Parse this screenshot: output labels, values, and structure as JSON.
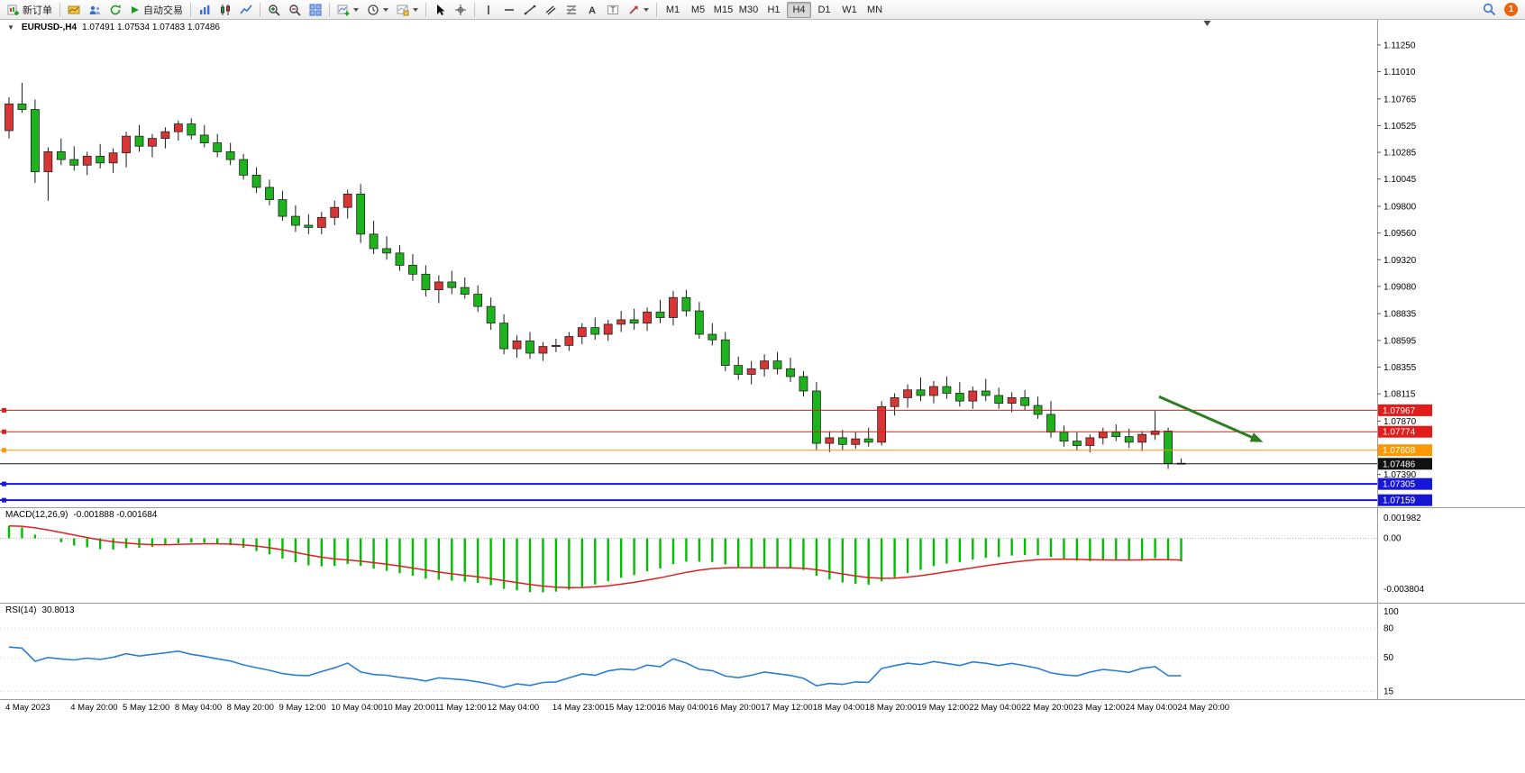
{
  "toolbar": {
    "new_order_label": "新订单",
    "autotrading_label": "自动交易",
    "timeframes": [
      "M1",
      "M5",
      "M15",
      "M30",
      "H1",
      "H4",
      "D1",
      "W1",
      "MN"
    ],
    "active_timeframe": "H4",
    "notification_count": "1"
  },
  "chart_header": {
    "symbol_period": "EURUSD-,H4",
    "ohlc": "1.07491 1.07534 1.07483 1.07486"
  },
  "macd_pane": {
    "title": "MACD(12,26,9)",
    "values": "-0.001888 -0.001684",
    "axis_labels": [
      "0.001982",
      "0.00",
      "-0.003804"
    ]
  },
  "rsi_pane": {
    "title": "RSI(14)",
    "value": "30.8013",
    "axis_labels": [
      "100",
      "80",
      "50",
      "15"
    ]
  },
  "chart_data": {
    "type": "candlestick",
    "symbol": "EURUSD-",
    "period": "H4",
    "price_ylim": [
      1.0712,
      1.1133
    ],
    "price_ticks": [
      "1.11250",
      "1.11010",
      "1.10765",
      "1.10525",
      "1.10285",
      "1.10045",
      "1.09800",
      "1.09560",
      "1.09320",
      "1.09080",
      "1.08835",
      "1.08595",
      "1.08355",
      "1.08115",
      "1.07870",
      "1.07390"
    ],
    "up_color": "#d93535",
    "down_color": "#1db31d",
    "outline_color": "#222222",
    "candles": [
      [
        1.1048,
        1.1078,
        1.1041,
        1.1072
      ],
      [
        1.1072,
        1.1091,
        1.1064,
        1.1067
      ],
      [
        1.1067,
        1.1076,
        1.1001,
        1.1011
      ],
      [
        1.1011,
        1.1033,
        1.0985,
        1.1029
      ],
      [
        1.1029,
        1.1041,
        1.1017,
        1.1022
      ],
      [
        1.1022,
        1.1034,
        1.1012,
        1.1017
      ],
      [
        1.1017,
        1.1029,
        1.1008,
        1.1025
      ],
      [
        1.1025,
        1.1036,
        1.1014,
        1.1019
      ],
      [
        1.1019,
        1.1032,
        1.101,
        1.1028
      ],
      [
        1.1028,
        1.1047,
        1.1015,
        1.1043
      ],
      [
        1.1043,
        1.1053,
        1.1029,
        1.1034
      ],
      [
        1.1034,
        1.1045,
        1.1024,
        1.1041
      ],
      [
        1.1041,
        1.1051,
        1.1032,
        1.1047
      ],
      [
        1.1047,
        1.1057,
        1.1039,
        1.1054
      ],
      [
        1.1054,
        1.1059,
        1.104,
        1.1044
      ],
      [
        1.1044,
        1.1053,
        1.1033,
        1.1037
      ],
      [
        1.1037,
        1.1045,
        1.1024,
        1.1029
      ],
      [
        1.1029,
        1.1037,
        1.1017,
        1.1022
      ],
      [
        1.1022,
        1.1027,
        1.1004,
        1.1008
      ],
      [
        1.1008,
        1.1015,
        1.0992,
        1.0997
      ],
      [
        1.0997,
        1.1004,
        1.0981,
        1.0986
      ],
      [
        1.0986,
        1.0994,
        1.0967,
        1.0971
      ],
      [
        1.0971,
        1.0981,
        1.0957,
        1.0963
      ],
      [
        1.0963,
        1.0973,
        1.0955,
        1.0961
      ],
      [
        1.0961,
        1.0975,
        1.0955,
        1.097
      ],
      [
        1.097,
        1.0985,
        1.0963,
        1.0979
      ],
      [
        1.0979,
        1.0995,
        1.0969,
        1.0991
      ],
      [
        1.0991,
        1.1,
        1.0947,
        1.0955
      ],
      [
        1.0955,
        1.0967,
        1.0937,
        1.0942
      ],
      [
        1.0942,
        1.0953,
        1.0932,
        1.0938
      ],
      [
        1.0938,
        1.0945,
        1.0922,
        1.0927
      ],
      [
        1.0927,
        1.0937,
        1.0913,
        1.0919
      ],
      [
        1.0919,
        1.0927,
        1.0899,
        1.0905
      ],
      [
        1.0905,
        1.0918,
        1.0893,
        1.0912
      ],
      [
        1.0912,
        1.0922,
        1.0901,
        1.0907
      ],
      [
        1.0907,
        1.0916,
        1.0897,
        1.0901
      ],
      [
        1.0901,
        1.0909,
        1.0885,
        1.089
      ],
      [
        1.089,
        1.0898,
        1.0869,
        1.0875
      ],
      [
        1.0875,
        1.0883,
        1.0847,
        1.0852
      ],
      [
        1.0852,
        1.0864,
        1.0844,
        1.0859
      ],
      [
        1.0859,
        1.0867,
        1.0843,
        1.0848
      ],
      [
        1.0848,
        1.0858,
        1.0841,
        1.0854
      ],
      [
        1.0854,
        1.0861,
        1.0849,
        1.0855
      ],
      [
        1.0855,
        1.0867,
        1.085,
        1.0863
      ],
      [
        1.0863,
        1.0875,
        1.0856,
        1.0871
      ],
      [
        1.0871,
        1.088,
        1.086,
        1.0865
      ],
      [
        1.0865,
        1.0878,
        1.0859,
        1.0874
      ],
      [
        1.0874,
        1.0886,
        1.0867,
        1.0878
      ],
      [
        1.0878,
        1.0888,
        1.0869,
        1.0875
      ],
      [
        1.0875,
        1.0889,
        1.0868,
        1.0885
      ],
      [
        1.0885,
        1.0896,
        1.0875,
        1.088
      ],
      [
        1.088,
        1.0904,
        1.0873,
        1.0898
      ],
      [
        1.0898,
        1.0905,
        1.0881,
        1.0886
      ],
      [
        1.0886,
        1.0894,
        1.0861,
        1.0865
      ],
      [
        1.0865,
        1.0875,
        1.0855,
        1.086
      ],
      [
        1.086,
        1.0867,
        1.0832,
        1.0837
      ],
      [
        1.0837,
        1.0845,
        1.0824,
        1.0829
      ],
      [
        1.0829,
        1.0841,
        1.082,
        1.0834
      ],
      [
        1.0834,
        1.0847,
        1.0827,
        1.0841
      ],
      [
        1.0841,
        1.0849,
        1.0829,
        1.0834
      ],
      [
        1.0834,
        1.0844,
        1.0822,
        1.0827
      ],
      [
        1.0827,
        1.0832,
        1.0809,
        1.0814
      ],
      [
        1.0814,
        1.0822,
        1.0761,
        1.0767
      ],
      [
        1.0767,
        1.0778,
        1.0759,
        1.0772
      ],
      [
        1.0772,
        1.0779,
        1.0761,
        1.0766
      ],
      [
        1.0766,
        1.0777,
        1.0762,
        1.0771
      ],
      [
        1.0771,
        1.0781,
        1.0764,
        1.0768
      ],
      [
        1.0768,
        1.0805,
        1.0765,
        1.08
      ],
      [
        1.08,
        1.0812,
        1.0792,
        1.0808
      ],
      [
        1.0808,
        1.082,
        1.0799,
        1.0815
      ],
      [
        1.0815,
        1.0826,
        1.0805,
        1.081
      ],
      [
        1.081,
        1.0823,
        1.0803,
        1.0818
      ],
      [
        1.0818,
        1.0827,
        1.0807,
        1.0812
      ],
      [
        1.0812,
        1.0822,
        1.08,
        1.0805
      ],
      [
        1.0805,
        1.0818,
        1.0798,
        1.0814
      ],
      [
        1.0814,
        1.0825,
        1.0805,
        1.081
      ],
      [
        1.081,
        1.0817,
        1.0798,
        1.0803
      ],
      [
        1.0803,
        1.0813,
        1.0795,
        1.0808
      ],
      [
        1.0808,
        1.0815,
        1.0797,
        1.0801
      ],
      [
        1.0801,
        1.0809,
        1.0789,
        1.0793
      ],
      [
        1.0793,
        1.0805,
        1.0772,
        1.0777
      ],
      [
        1.0777,
        1.0783,
        1.0764,
        1.0769
      ],
      [
        1.0769,
        1.0777,
        1.0761,
        1.0765
      ],
      [
        1.0765,
        1.0775,
        1.0759,
        1.0772
      ],
      [
        1.0772,
        1.0781,
        1.0766,
        1.0777
      ],
      [
        1.0777,
        1.0784,
        1.0769,
        1.0773
      ],
      [
        1.0773,
        1.078,
        1.0763,
        1.0768
      ],
      [
        1.0768,
        1.0778,
        1.076,
        1.0775
      ],
      [
        1.0775,
        1.0796,
        1.077,
        1.0778
      ],
      [
        1.0778,
        1.0781,
        1.0744,
        1.0749
      ],
      [
        1.07491,
        1.07534,
        1.07483,
        1.07486
      ]
    ],
    "time_labels": [
      {
        "text": "4 May 2023",
        "bar": 0
      },
      {
        "text": "4 May 20:00",
        "bar": 5
      },
      {
        "text": "5 May 12:00",
        "bar": 9
      },
      {
        "text": "8 May 04:00",
        "bar": 13
      },
      {
        "text": "8 May 20:00",
        "bar": 17
      },
      {
        "text": "9 May 12:00",
        "bar": 21
      },
      {
        "text": "10 May 04:00",
        "bar": 25
      },
      {
        "text": "10 May 20:00",
        "bar": 29
      },
      {
        "text": "11 May 12:00",
        "bar": 33
      },
      {
        "text": "12 May 04:00",
        "bar": 37
      },
      {
        "text": "14 May 23:00",
        "bar": 42
      },
      {
        "text": "15 May 12:00",
        "bar": 46
      },
      {
        "text": "16 May 04:00",
        "bar": 50
      },
      {
        "text": "16 May 20:00",
        "bar": 54
      },
      {
        "text": "17 May 12:00",
        "bar": 58
      },
      {
        "text": "18 May 04:00",
        "bar": 62
      },
      {
        "text": "18 May 20:00",
        "bar": 66
      },
      {
        "text": "19 May 12:00",
        "bar": 70
      },
      {
        "text": "22 May 04:00",
        "bar": 74
      },
      {
        "text": "22 May 20:00",
        "bar": 78
      },
      {
        "text": "23 May 12:00",
        "bar": 82
      },
      {
        "text": "24 May 04:00",
        "bar": 86
      },
      {
        "text": "24 May 20:00",
        "bar": 90
      }
    ],
    "hlines": [
      {
        "price": 1.07967,
        "label": "1.07967",
        "color": "#e21b1b",
        "width": 1
      },
      {
        "price": 1.07774,
        "label": "1.07774",
        "color": "#e21b1b",
        "width": 1
      },
      {
        "price": 1.07608,
        "label": "1.07608",
        "color": "#ff9800",
        "width": 1
      },
      {
        "price": 1.07305,
        "label": "1.07305",
        "color": "#1616d6",
        "width": 2
      },
      {
        "price": 1.07159,
        "label": "1.07159",
        "color": "#1616d6",
        "width": 2
      }
    ],
    "bid": {
      "price": 1.07486,
      "label": "1.07486",
      "color": "#111111"
    },
    "arrow": {
      "from": {
        "bar": 88.3,
        "price": 1.0809
      },
      "to": {
        "bar": 96.3,
        "price": 1.0768
      },
      "color": "#2e7d1e"
    },
    "shift_marker_bar": 92,
    "macd": {
      "params": "12,26,9",
      "ylim": [
        -0.0046,
        0.00205
      ],
      "hist_color": "#00bf00",
      "signal_color": "#e02020",
      "axis_values": [
        0.001982,
        0,
        -0.003804
      ]
    },
    "rsi": {
      "period": 14,
      "ylim": [
        10,
        103
      ],
      "levels": [
        80,
        50,
        15
      ],
      "color": "#2a7fd4",
      "axis_values": [
        100,
        80,
        50,
        15
      ]
    }
  }
}
